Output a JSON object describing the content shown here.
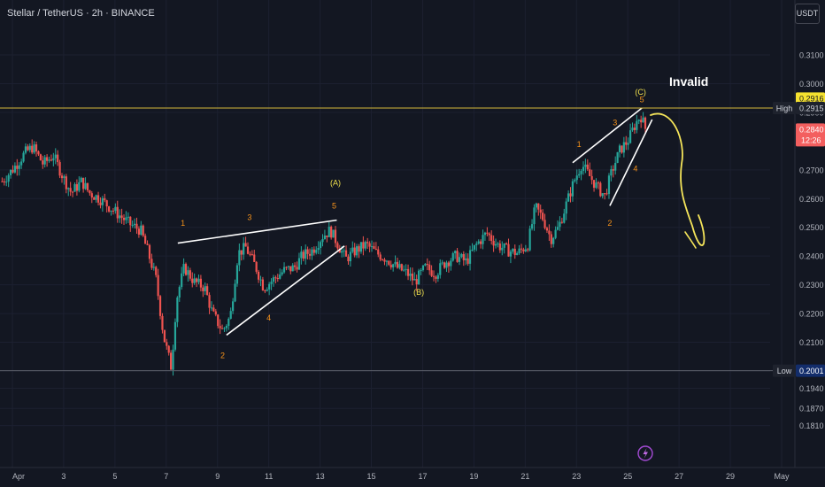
{
  "header": {
    "title": "Stellar / TetherUS · 2h · BINANCE",
    "currency_button": "USDT"
  },
  "colors": {
    "background": "#131722",
    "up": "#26a69a",
    "down": "#ef5350",
    "wave_lines": "#ffffff",
    "wave_numbers": "#f7931a",
    "abc_labels": "#f0e04d",
    "forecast_path": "#f5e55a",
    "level_line": "#d4b93a",
    "high_badge": "#f5e12f",
    "low_badge": "#132d6b",
    "last_price_badge": "#f35f5f"
  },
  "chart_data": {
    "type": "candlestick",
    "y_axis": {
      "min": 0.175,
      "max": 0.323,
      "ticks": [
        "0.3100",
        "0.3000",
        "0.2900",
        "0.2700",
        "0.2600",
        "0.2500",
        "0.2400",
        "0.2300",
        "0.2200",
        "0.2100",
        "0.2000",
        "0.1940",
        "0.1870",
        "0.1810"
      ]
    },
    "x_axis": {
      "ticks": [
        {
          "label": "Apr",
          "day": 1
        },
        {
          "label": "3",
          "day": 3
        },
        {
          "label": "5",
          "day": 5
        },
        {
          "label": "7",
          "day": 7
        },
        {
          "label": "9",
          "day": 9
        },
        {
          "label": "11",
          "day": 11
        },
        {
          "label": "13",
          "day": 13
        },
        {
          "label": "15",
          "day": 15
        },
        {
          "label": "17",
          "day": 17
        },
        {
          "label": "19",
          "day": 19
        },
        {
          "label": "21",
          "day": 21
        },
        {
          "label": "23",
          "day": 23
        },
        {
          "label": "25",
          "day": 25
        },
        {
          "label": "27",
          "day": 27
        },
        {
          "label": "29",
          "day": 29
        },
        {
          "label": "May",
          "day": 31
        }
      ]
    },
    "price_path": [
      [
        0.6,
        0.266
      ],
      [
        1.0,
        0.27
      ],
      [
        1.5,
        0.276
      ],
      [
        1.8,
        0.278
      ],
      [
        2.2,
        0.272
      ],
      [
        2.6,
        0.275
      ],
      [
        3.0,
        0.267
      ],
      [
        3.3,
        0.262
      ],
      [
        3.7,
        0.266
      ],
      [
        4.0,
        0.262
      ],
      [
        4.4,
        0.26
      ],
      [
        4.8,
        0.257
      ],
      [
        5.2,
        0.254
      ],
      [
        5.6,
        0.251
      ],
      [
        6.0,
        0.249
      ],
      [
        6.3,
        0.241
      ],
      [
        6.6,
        0.232
      ],
      [
        6.9,
        0.212
      ],
      [
        7.2,
        0.201
      ],
      [
        7.4,
        0.225
      ],
      [
        7.7,
        0.236
      ],
      [
        8.1,
        0.231
      ],
      [
        8.5,
        0.229
      ],
      [
        8.8,
        0.22
      ],
      [
        9.2,
        0.214
      ],
      [
        9.5,
        0.219
      ],
      [
        9.8,
        0.241
      ],
      [
        10.1,
        0.243
      ],
      [
        10.5,
        0.236
      ],
      [
        10.8,
        0.229
      ],
      [
        11.2,
        0.232
      ],
      [
        11.6,
        0.235
      ],
      [
        12.0,
        0.236
      ],
      [
        12.3,
        0.24
      ],
      [
        12.7,
        0.242
      ],
      [
        13.1,
        0.247
      ],
      [
        13.4,
        0.249
      ],
      [
        13.7,
        0.244
      ],
      [
        14.0,
        0.239
      ],
      [
        14.4,
        0.242
      ],
      [
        14.8,
        0.244
      ],
      [
        15.2,
        0.241
      ],
      [
        15.6,
        0.239
      ],
      [
        16.0,
        0.236
      ],
      [
        16.4,
        0.234
      ],
      [
        16.7,
        0.231
      ],
      [
        17.1,
        0.236
      ],
      [
        17.5,
        0.234
      ],
      [
        17.9,
        0.238
      ],
      [
        18.3,
        0.24
      ],
      [
        18.7,
        0.238
      ],
      [
        19.1,
        0.244
      ],
      [
        19.5,
        0.248
      ],
      [
        19.9,
        0.244
      ],
      [
        20.3,
        0.242
      ],
      [
        20.7,
        0.241
      ],
      [
        21.1,
        0.244
      ],
      [
        21.4,
        0.257
      ],
      [
        21.7,
        0.253
      ],
      [
        22.0,
        0.246
      ],
      [
        22.3,
        0.25
      ],
      [
        22.6,
        0.258
      ],
      [
        22.9,
        0.266
      ],
      [
        23.2,
        0.272
      ],
      [
        23.5,
        0.268
      ],
      [
        23.8,
        0.264
      ],
      [
        24.1,
        0.261
      ],
      [
        24.4,
        0.27
      ],
      [
        24.7,
        0.277
      ],
      [
        25.0,
        0.28
      ],
      [
        25.3,
        0.286
      ],
      [
        25.5,
        0.289
      ],
      [
        25.7,
        0.284
      ]
    ],
    "levels": [
      {
        "name": "High",
        "value": 0.2915
      },
      {
        "name": "Low",
        "value": 0.2001
      }
    ],
    "last_price": {
      "value": "0.2840",
      "countdown": "12:26"
    },
    "high_marker": "0.2916",
    "annotations": {
      "invalid": "Invalid",
      "wave_numbers": [
        {
          "text": "1",
          "day": 7.65,
          "price": 0.2505
        },
        {
          "text": "3",
          "day": 10.25,
          "price": 0.2525
        },
        {
          "text": "5",
          "day": 13.55,
          "price": 0.2565
        },
        {
          "text": "4",
          "day": 11.0,
          "price": 0.2175
        },
        {
          "text": "2",
          "day": 9.2,
          "price": 0.2045
        },
        {
          "text": "1",
          "day": 23.1,
          "price": 0.278
        },
        {
          "text": "3",
          "day": 24.5,
          "price": 0.2855
        },
        {
          "text": "5",
          "day": 25.55,
          "price": 0.2935
        },
        {
          "text": "4",
          "day": 25.3,
          "price": 0.2695
        },
        {
          "text": "2",
          "day": 24.3,
          "price": 0.2505
        }
      ],
      "abc_labels": [
        {
          "text": "(A)",
          "day": 13.6,
          "price": 0.2645
        },
        {
          "text": "(B)",
          "day": 16.85,
          "price": 0.2265
        },
        {
          "text": "(C)",
          "day": 25.5,
          "price": 0.2962
        }
      ],
      "trendlines": [
        {
          "from": [
            7.45,
            0.2445
          ],
          "to": [
            13.65,
            0.2525
          ]
        },
        {
          "from": [
            9.35,
            0.2125
          ],
          "to": [
            13.95,
            0.2435
          ]
        },
        {
          "from": [
            22.85,
            0.2725
          ],
          "to": [
            25.55,
            0.2915
          ]
        },
        {
          "from": [
            24.3,
            0.2575
          ],
          "to": [
            25.95,
            0.2875
          ]
        }
      ]
    }
  }
}
